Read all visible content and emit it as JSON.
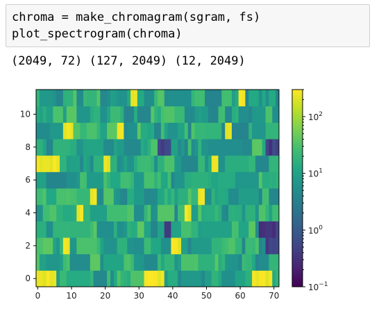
{
  "code": {
    "line1": "chroma = make_chromagram(sgram, fs)",
    "line2": "plot_spectrogram(chroma)"
  },
  "output": {
    "text": "(2049, 72) (127, 2049) (12, 2049)"
  },
  "chart_data": {
    "type": "heatmap",
    "title": "",
    "xlabel": "",
    "ylabel": "",
    "xlim": [
      0,
      72
    ],
    "ylim": [
      -0.5,
      11.5
    ],
    "x_ticks": [
      "0",
      "10",
      "20",
      "30",
      "40",
      "50",
      "60",
      "70"
    ],
    "y_ticks": [
      "0",
      "2",
      "4",
      "6",
      "8",
      "10"
    ],
    "colorbar": {
      "scale": "log",
      "colormap": "viridis",
      "ticks": [
        {
          "base": "10",
          "exp": "2",
          "value": 100
        },
        {
          "base": "10",
          "exp": "1",
          "value": 10
        },
        {
          "base": "10",
          "exp": "0",
          "value": 1
        },
        {
          "base": "10",
          "exp": "−1",
          "value": 0.1
        }
      ],
      "range": [
        0.1,
        300
      ]
    },
    "rows": 12,
    "columns": 72,
    "bright_cells": [
      {
        "row": 0,
        "cols": [
          0,
          6
        ]
      },
      {
        "row": 0,
        "cols": [
          32,
          38
        ]
      },
      {
        "row": 0,
        "cols": [
          64,
          70
        ]
      },
      {
        "row": 2,
        "cols": [
          8,
          10
        ]
      },
      {
        "row": 2,
        "cols": [
          40,
          43
        ]
      },
      {
        "row": 4,
        "cols": [
          12,
          14
        ]
      },
      {
        "row": 4,
        "cols": [
          44,
          46
        ]
      },
      {
        "row": 5,
        "cols": [
          16,
          18
        ]
      },
      {
        "row": 5,
        "cols": [
          48,
          50
        ]
      },
      {
        "row": 7,
        "cols": [
          0,
          7
        ]
      },
      {
        "row": 7,
        "cols": [
          20,
          22
        ]
      },
      {
        "row": 7,
        "cols": [
          52,
          54
        ]
      },
      {
        "row": 9,
        "cols": [
          8,
          11
        ]
      },
      {
        "row": 9,
        "cols": [
          24,
          26
        ]
      },
      {
        "row": 9,
        "cols": [
          56,
          58
        ]
      },
      {
        "row": 11,
        "cols": [
          28,
          30
        ]
      },
      {
        "row": 11,
        "cols": [
          60,
          62
        ]
      }
    ],
    "dark_cells": [
      {
        "row": 8,
        "cols": [
          36,
          40
        ]
      },
      {
        "row": 3,
        "cols": [
          38,
          40
        ]
      },
      {
        "row": 8,
        "cols": [
          68,
          72
        ]
      },
      {
        "row": 2,
        "cols": [
          68,
          72
        ]
      },
      {
        "row": 3,
        "cols": [
          66,
          72
        ]
      }
    ]
  }
}
